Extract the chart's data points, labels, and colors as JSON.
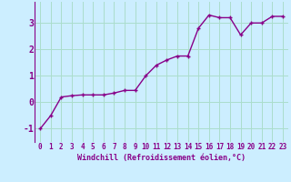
{
  "x": [
    0,
    1,
    2,
    3,
    4,
    5,
    6,
    7,
    8,
    9,
    10,
    11,
    12,
    13,
    14,
    15,
    16,
    17,
    18,
    19,
    20,
    21,
    22,
    23
  ],
  "y": [
    -1.0,
    -0.5,
    0.2,
    0.25,
    0.28,
    0.28,
    0.28,
    0.35,
    0.45,
    0.45,
    1.0,
    1.4,
    1.6,
    1.75,
    1.75,
    2.8,
    3.3,
    3.2,
    3.2,
    2.55,
    3.0,
    3.0,
    3.25,
    3.25
  ],
  "line_color": "#880088",
  "marker": "+",
  "bg_color": "#cceeff",
  "grid_color": "#aaddcc",
  "xlabel": "Windchill (Refroidissement éolien,°C)",
  "xlabel_color": "#880088",
  "tick_color": "#880088",
  "spine_color": "#880088",
  "ylim": [
    -1.5,
    3.8
  ],
  "xlim": [
    -0.5,
    23.5
  ],
  "yticks": [
    -1,
    0,
    1,
    2,
    3
  ],
  "xticks": [
    0,
    1,
    2,
    3,
    4,
    5,
    6,
    7,
    8,
    9,
    10,
    11,
    12,
    13,
    14,
    15,
    16,
    17,
    18,
    19,
    20,
    21,
    22,
    23
  ],
  "linewidth": 1.0,
  "markersize": 3.5,
  "tick_fontsize": 5.5,
  "xlabel_fontsize": 6.0
}
